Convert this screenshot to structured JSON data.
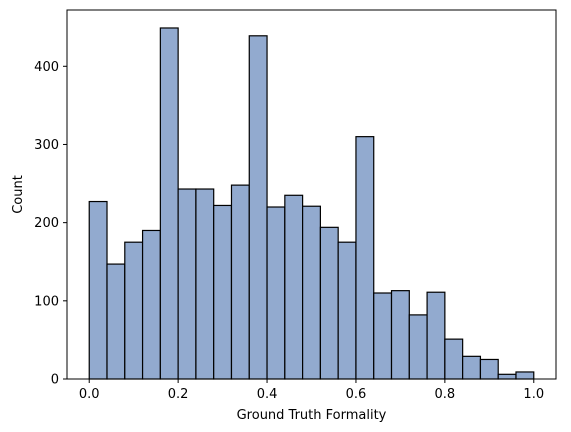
{
  "chart_data": {
    "type": "histogram",
    "xlabel": "Ground Truth Formality",
    "ylabel": "Count",
    "xlim": [
      -0.05,
      1.05
    ],
    "ylim": [
      0,
      472
    ],
    "bin_width": 0.04,
    "bin_start": 0.0,
    "values": [
      227,
      147,
      175,
      190,
      449,
      243,
      243,
      222,
      248,
      439,
      220,
      235,
      221,
      194,
      175,
      310,
      110,
      113,
      82,
      111,
      51,
      29,
      25,
      6,
      9
    ],
    "x_ticks": [
      0.0,
      0.2,
      0.4,
      0.6,
      0.8,
      1.0
    ],
    "x_tick_labels": [
      "0.0",
      "0.2",
      "0.4",
      "0.6",
      "0.8",
      "1.0"
    ],
    "y_ticks": [
      0,
      100,
      200,
      300,
      400
    ],
    "y_tick_labels": [
      "0",
      "100",
      "200",
      "300",
      "400"
    ],
    "bar_color": "#92aacf",
    "edge_color": "#000000",
    "grid": false
  }
}
